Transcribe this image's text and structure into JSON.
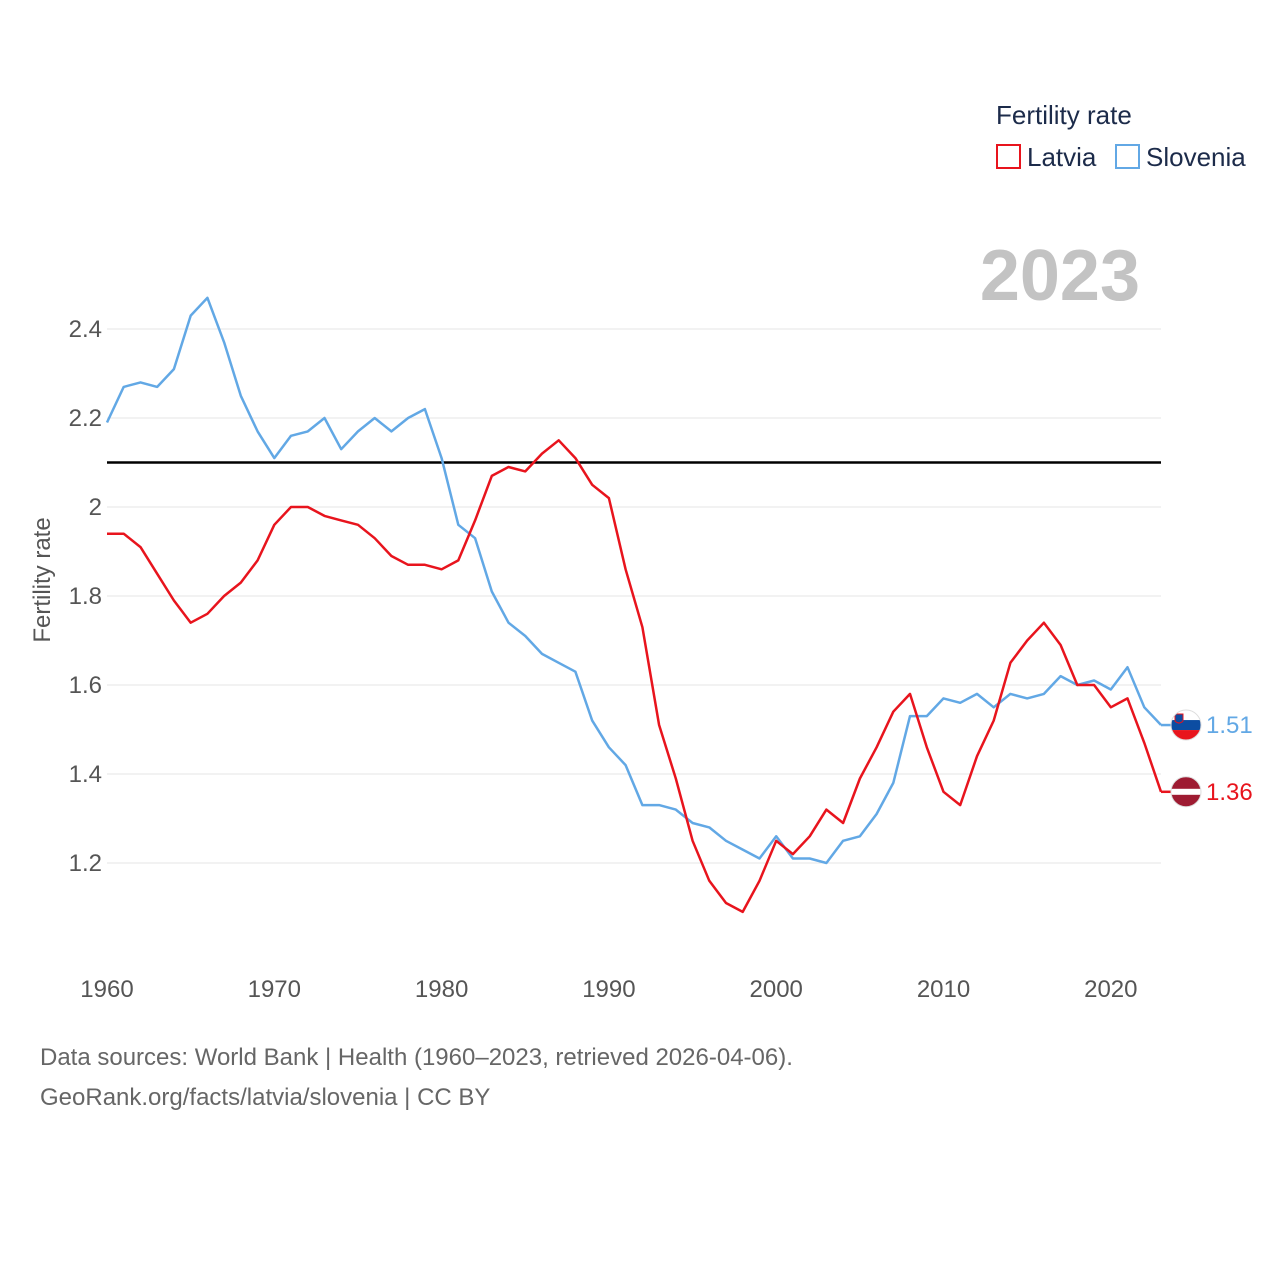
{
  "legend": {
    "title": "Fertility rate",
    "items": [
      {
        "label": "Latvia",
        "color": "#e8141d"
      },
      {
        "label": "Slovenia",
        "color": "#62a8e5"
      }
    ]
  },
  "year_label": "2023",
  "footer": {
    "source": "Data sources: World Bank | Health (1960–2023, retrieved 2026-04-06).",
    "credit": "GeoRank.org/facts/latvia/slovenia | CC BY"
  },
  "chart_data": {
    "type": "line",
    "title": "Fertility rate",
    "xlabel": "",
    "ylabel": "Fertility rate",
    "xlim": [
      1960,
      2023
    ],
    "ylim": [
      1.0,
      2.6
    ],
    "xticks": [
      1960,
      1970,
      1980,
      1990,
      2000,
      2010,
      2020
    ],
    "yticks": [
      1.2,
      1.4,
      1.6,
      1.8,
      2.0,
      2.2,
      2.4
    ],
    "ytick_labels": [
      "1.2",
      "1.4",
      "1.6",
      "1.8",
      "2",
      "2.2",
      "2.4"
    ],
    "grid": true,
    "reference_line": {
      "y": 2.1,
      "color": "#000000"
    },
    "x": [
      1960,
      1961,
      1962,
      1963,
      1964,
      1965,
      1966,
      1967,
      1968,
      1969,
      1970,
      1971,
      1972,
      1973,
      1974,
      1975,
      1976,
      1977,
      1978,
      1979,
      1980,
      1981,
      1982,
      1983,
      1984,
      1985,
      1986,
      1987,
      1988,
      1989,
      1990,
      1991,
      1992,
      1993,
      1994,
      1995,
      1996,
      1997,
      1998,
      1999,
      2000,
      2001,
      2002,
      2003,
      2004,
      2005,
      2006,
      2007,
      2008,
      2009,
      2010,
      2011,
      2012,
      2013,
      2014,
      2015,
      2016,
      2017,
      2018,
      2019,
      2020,
      2021,
      2022,
      2023
    ],
    "series": [
      {
        "name": "Latvia",
        "color": "#e8141d",
        "end_label": "1.36",
        "flag": "latvia-flag-icon",
        "values": [
          1.94,
          1.94,
          1.91,
          1.85,
          1.79,
          1.74,
          1.76,
          1.8,
          1.83,
          1.88,
          1.96,
          2.0,
          2.0,
          1.98,
          1.97,
          1.96,
          1.93,
          1.89,
          1.87,
          1.87,
          1.86,
          1.88,
          1.97,
          2.07,
          2.09,
          2.08,
          2.12,
          2.15,
          2.11,
          2.05,
          2.02,
          1.86,
          1.73,
          1.51,
          1.39,
          1.25,
          1.16,
          1.11,
          1.09,
          1.16,
          1.25,
          1.22,
          1.26,
          1.32,
          1.29,
          1.39,
          1.46,
          1.54,
          1.58,
          1.46,
          1.36,
          1.33,
          1.44,
          1.52,
          1.65,
          1.7,
          1.74,
          1.69,
          1.6,
          1.6,
          1.55,
          1.57,
          1.47,
          1.36
        ]
      },
      {
        "name": "Slovenia",
        "color": "#62a8e5",
        "end_label": "1.51",
        "flag": "slovenia-flag-icon",
        "values": [
          2.19,
          2.27,
          2.28,
          2.27,
          2.31,
          2.43,
          2.47,
          2.37,
          2.25,
          2.17,
          2.11,
          2.16,
          2.17,
          2.2,
          2.13,
          2.17,
          2.2,
          2.17,
          2.2,
          2.22,
          2.11,
          1.96,
          1.93,
          1.81,
          1.74,
          1.71,
          1.67,
          1.65,
          1.63,
          1.52,
          1.46,
          1.42,
          1.33,
          1.33,
          1.32,
          1.29,
          1.28,
          1.25,
          1.23,
          1.21,
          1.26,
          1.21,
          1.21,
          1.2,
          1.25,
          1.26,
          1.31,
          1.38,
          1.53,
          1.53,
          1.57,
          1.56,
          1.58,
          1.55,
          1.58,
          1.57,
          1.58,
          1.62,
          1.6,
          1.61,
          1.59,
          1.64,
          1.55,
          1.51
        ]
      }
    ]
  }
}
